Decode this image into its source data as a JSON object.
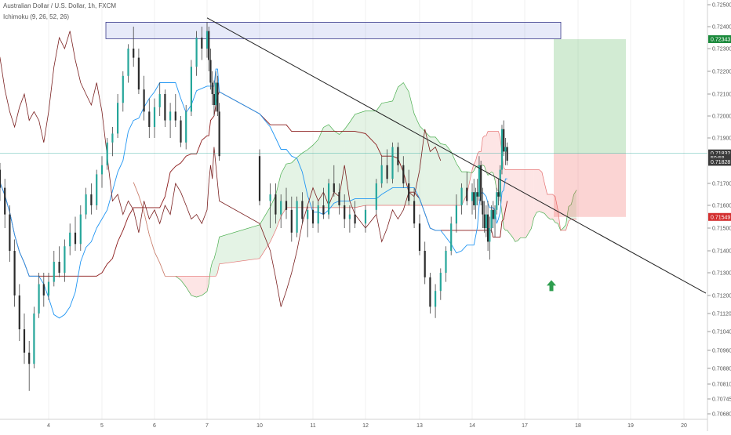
{
  "header": {
    "title": "Australian Dollar / U.S. Dollar, 1h, FXCM",
    "indicator": "Ichimoku (9, 26, 52, 26)"
  },
  "colors": {
    "bull": "#26a69a",
    "bear": "#ef5350",
    "candle_body": "#3a3a3a",
    "tenkan": "#2196f3",
    "kijun": "#8b1a1a",
    "lagging": "#7a2020",
    "span_a": "#4caf50",
    "span_b": "#e57373",
    "cloud_bull": "rgba(76,175,80,0.15)",
    "cloud_bear": "rgba(239,83,80,0.15)",
    "target_zone": "rgba(76,175,80,0.25)",
    "stop_zone": "rgba(239,83,80,0.25)",
    "resistance_zone": "rgba(120,140,220,0.18)",
    "trendline": "#222222",
    "tag_green": "#1b8a3c",
    "tag_dark": "#3b3b3b",
    "tag_red": "#d32f2f"
  },
  "chart_data": {
    "type": "candlestick",
    "symbol": "Australian Dollar / U.S. Dollar",
    "timeframe": "1h",
    "source": "FXCM",
    "indicator": "Ichimoku (9, 26, 52, 26)",
    "x_ticks": [
      "4",
      "5",
      "6",
      "7",
      "10",
      "11",
      "12",
      "13",
      "14",
      "17",
      "18",
      "19",
      "20"
    ],
    "y_ticks": [
      "0.72500",
      "0.72400",
      "0.72300",
      "0.72200",
      "0.72100",
      "0.72000",
      "0.71900",
      "0.71700",
      "0.71600",
      "0.71500",
      "0.71400",
      "0.71300",
      "0.71200",
      "0.71120",
      "0.71040",
      "0.70960",
      "0.70880",
      "0.70810",
      "0.70745",
      "0.70680"
    ],
    "price_tags": [
      {
        "label": "0.72343",
        "value": 0.72343,
        "style": "green"
      },
      {
        "label": "0.71832",
        "value": 0.71832,
        "style": "dark"
      },
      {
        "label": "50:58",
        "value": 0.71812,
        "style": "dark"
      },
      {
        "label": "0.71828",
        "value": 0.71795,
        "style": "dark"
      },
      {
        "label": "0.71549",
        "value": 0.71549,
        "style": "red"
      }
    ],
    "position": {
      "entry": 0.71832,
      "target": 0.72343,
      "stop": 0.71549
    },
    "resistance_zone": {
      "low": 0.72345,
      "high": 0.7242
    },
    "trendline": {
      "from": {
        "day": 7,
        "price": 0.7244
      },
      "to": {
        "day": 20.4,
        "price": 0.7121
      }
    },
    "signal": {
      "type": "buy-arrow",
      "day": 17.45,
      "price": 0.7124
    },
    "candles": [
      [
        3.0,
        0.7176,
        0.7179,
        0.7162,
        0.7168
      ],
      [
        3.1,
        0.7168,
        0.7172,
        0.715,
        0.7156
      ],
      [
        3.2,
        0.7156,
        0.716,
        0.7135,
        0.714
      ],
      [
        3.3,
        0.714,
        0.7145,
        0.7115,
        0.712
      ],
      [
        3.4,
        0.712,
        0.7125,
        0.71,
        0.7105
      ],
      [
        3.5,
        0.7105,
        0.7112,
        0.709,
        0.7095
      ],
      [
        3.6,
        0.7095,
        0.71,
        0.7078,
        0.709
      ],
      [
        3.7,
        0.709,
        0.7115,
        0.7088,
        0.7112
      ],
      [
        3.8,
        0.7112,
        0.713,
        0.711,
        0.7125
      ],
      [
        3.9,
        0.7125,
        0.713,
        0.7115,
        0.712
      ],
      [
        4.0,
        0.712,
        0.713,
        0.7118,
        0.7126
      ],
      [
        4.1,
        0.7126,
        0.714,
        0.7124,
        0.7135
      ],
      [
        4.2,
        0.7135,
        0.7142,
        0.7128,
        0.713
      ],
      [
        4.3,
        0.713,
        0.7145,
        0.7126,
        0.7142
      ],
      [
        4.4,
        0.7142,
        0.7152,
        0.7138,
        0.7148
      ],
      [
        4.5,
        0.7148,
        0.7155,
        0.714,
        0.7143
      ],
      [
        4.6,
        0.7143,
        0.716,
        0.714,
        0.7156
      ],
      [
        4.7,
        0.7156,
        0.7168,
        0.7154,
        0.7165
      ],
      [
        4.8,
        0.7165,
        0.717,
        0.7156,
        0.716
      ],
      [
        4.9,
        0.716,
        0.7176,
        0.7158,
        0.7174
      ],
      [
        5.0,
        0.7174,
        0.7182,
        0.7168,
        0.7178
      ],
      [
        5.1,
        0.7178,
        0.719,
        0.7176,
        0.7188
      ],
      [
        5.2,
        0.7188,
        0.7195,
        0.7182,
        0.7192
      ],
      [
        5.3,
        0.7192,
        0.721,
        0.719,
        0.7206
      ],
      [
        5.4,
        0.7206,
        0.722,
        0.7202,
        0.7218
      ],
      [
        5.5,
        0.7218,
        0.7232,
        0.7215,
        0.723
      ],
      [
        5.6,
        0.723,
        0.724,
        0.7222,
        0.7226
      ],
      [
        5.7,
        0.7226,
        0.723,
        0.721,
        0.7212
      ],
      [
        5.8,
        0.7212,
        0.7218,
        0.7198,
        0.7202
      ],
      [
        5.9,
        0.7202,
        0.7208,
        0.719,
        0.7195
      ],
      [
        6.0,
        0.7195,
        0.7208,
        0.719,
        0.7204
      ],
      [
        6.1,
        0.7204,
        0.7215,
        0.72,
        0.721
      ],
      [
        6.2,
        0.721,
        0.7212,
        0.7195,
        0.7198
      ],
      [
        6.3,
        0.7198,
        0.7206,
        0.719,
        0.7202
      ],
      [
        6.4,
        0.7202,
        0.721,
        0.7195,
        0.7198
      ],
      [
        6.5,
        0.7198,
        0.72,
        0.7186,
        0.7188
      ],
      [
        6.6,
        0.7188,
        0.7205,
        0.7185,
        0.7202
      ],
      [
        6.7,
        0.7202,
        0.7225,
        0.72,
        0.7222
      ],
      [
        6.8,
        0.7222,
        0.7238,
        0.7218,
        0.7235
      ],
      [
        6.9,
        0.7235,
        0.724,
        0.7225,
        0.723
      ],
      [
        7.0,
        0.723,
        0.7242,
        0.7226,
        0.7238
      ],
      [
        7.1,
        0.7238,
        0.724,
        0.722,
        0.7225
      ],
      [
        7.2,
        0.7225,
        0.723,
        0.7212,
        0.7215
      ],
      [
        7.3,
        0.7215,
        0.722,
        0.7205,
        0.721
      ],
      [
        7.4,
        0.721,
        0.7216,
        0.72,
        0.7205
      ],
      [
        7.5,
        0.7205,
        0.722,
        0.7202,
        0.7215
      ],
      [
        7.6,
        0.7215,
        0.7218,
        0.72,
        0.7202
      ],
      [
        7.7,
        0.7202,
        0.7206,
        0.718,
        0.7182
      ],
      [
        7.8,
        0.7182,
        0.7185,
        0.716,
        0.7162
      ],
      [
        8.0,
        0.7162,
        0.717,
        0.715,
        0.7165
      ],
      [
        8.1,
        0.7165,
        0.717,
        0.7152,
        0.7156
      ],
      [
        8.2,
        0.7156,
        0.7165,
        0.715,
        0.7162
      ],
      [
        8.3,
        0.7162,
        0.7168,
        0.7154,
        0.7158
      ],
      [
        8.4,
        0.7158,
        0.7164,
        0.7144,
        0.7148
      ],
      [
        8.5,
        0.7148,
        0.7164,
        0.7146,
        0.7162
      ],
      [
        8.6,
        0.7162,
        0.7166,
        0.7152,
        0.7154
      ],
      [
        8.7,
        0.7154,
        0.716,
        0.7146,
        0.7158
      ],
      [
        8.8,
        0.7158,
        0.7162,
        0.715,
        0.7152
      ],
      [
        8.9,
        0.7152,
        0.7162,
        0.7148,
        0.716
      ],
      [
        9.0,
        0.716,
        0.7168,
        0.7154,
        0.7156
      ],
      [
        9.1,
        0.7156,
        0.7172,
        0.7154,
        0.717
      ],
      [
        9.2,
        0.717,
        0.7178,
        0.7164,
        0.7166
      ],
      [
        9.3,
        0.7166,
        0.717,
        0.7156,
        0.716
      ],
      [
        9.4,
        0.716,
        0.7165,
        0.715,
        0.7154
      ],
      [
        9.5,
        0.7154,
        0.716,
        0.7148,
        0.7156
      ],
      [
        9.6,
        0.7156,
        0.7162,
        0.715,
        0.7152
      ],
      [
        9.8,
        0.7152,
        0.716,
        0.7148,
        0.7158
      ],
      [
        10.0,
        0.7158,
        0.7172,
        0.7156,
        0.717
      ],
      [
        10.1,
        0.717,
        0.7182,
        0.7168,
        0.7178
      ],
      [
        10.2,
        0.7178,
        0.7185,
        0.717,
        0.7172
      ],
      [
        10.3,
        0.7172,
        0.7188,
        0.717,
        0.7186
      ],
      [
        10.4,
        0.7186,
        0.7188,
        0.7175,
        0.7178
      ],
      [
        10.5,
        0.7178,
        0.7182,
        0.7168,
        0.717
      ],
      [
        10.6,
        0.717,
        0.7176,
        0.716,
        0.7162
      ],
      [
        10.7,
        0.7162,
        0.7168,
        0.715,
        0.7152
      ],
      [
        10.8,
        0.7152,
        0.7156,
        0.7138,
        0.714
      ],
      [
        10.9,
        0.714,
        0.7144,
        0.7125,
        0.7128
      ],
      [
        11.0,
        0.7128,
        0.713,
        0.7112,
        0.7115
      ],
      [
        11.1,
        0.7115,
        0.7125,
        0.711,
        0.7122
      ],
      [
        11.2,
        0.7122,
        0.7132,
        0.7118,
        0.713
      ],
      [
        11.3,
        0.713,
        0.7142,
        0.7126,
        0.714
      ],
      [
        11.4,
        0.714,
        0.7155,
        0.7138,
        0.7152
      ],
      [
        11.5,
        0.7152,
        0.7165,
        0.7148,
        0.716
      ],
      [
        11.6,
        0.716,
        0.717,
        0.7156,
        0.7168
      ],
      [
        11.7,
        0.7168,
        0.7175,
        0.716,
        0.7162
      ],
      [
        11.8,
        0.7162,
        0.717,
        0.7156,
        0.7166
      ],
      [
        11.9,
        0.7166,
        0.7172,
        0.7158,
        0.716
      ],
      [
        12.0,
        0.716,
        0.7168,
        0.7154,
        0.7166
      ],
      [
        12.1,
        0.7166,
        0.7172,
        0.716,
        0.7164
      ],
      [
        12.2,
        0.7164,
        0.7182,
        0.7162,
        0.7178
      ],
      [
        12.3,
        0.7178,
        0.718,
        0.716,
        0.7162
      ],
      [
        12.4,
        0.7162,
        0.7168,
        0.715,
        0.7156
      ],
      [
        12.5,
        0.7156,
        0.7162,
        0.7148,
        0.715
      ],
      [
        12.6,
        0.715,
        0.716,
        0.7146,
        0.7156
      ],
      [
        12.7,
        0.7156,
        0.7162,
        0.714,
        0.7144
      ],
      [
        12.8,
        0.7144,
        0.7155,
        0.7136,
        0.715
      ],
      [
        12.9,
        0.715,
        0.716,
        0.7148,
        0.7158
      ],
      [
        13.0,
        0.7158,
        0.7162,
        0.715,
        0.7154
      ],
      [
        13.1,
        0.7154,
        0.716,
        0.7146,
        0.7158
      ],
      [
        13.2,
        0.7158,
        0.7168,
        0.7156,
        0.7166
      ],
      [
        13.3,
        0.7166,
        0.7172,
        0.716,
        0.7164
      ],
      [
        13.4,
        0.7164,
        0.7178,
        0.7162,
        0.7176
      ],
      [
        13.5,
        0.7176,
        0.7196,
        0.7174,
        0.7194
      ],
      [
        13.6,
        0.7194,
        0.7198,
        0.7182,
        0.7184
      ],
      [
        13.7,
        0.7184,
        0.719,
        0.7178,
        0.7186
      ],
      [
        13.8,
        0.7186,
        0.7188,
        0.7178,
        0.718
      ]
    ]
  }
}
